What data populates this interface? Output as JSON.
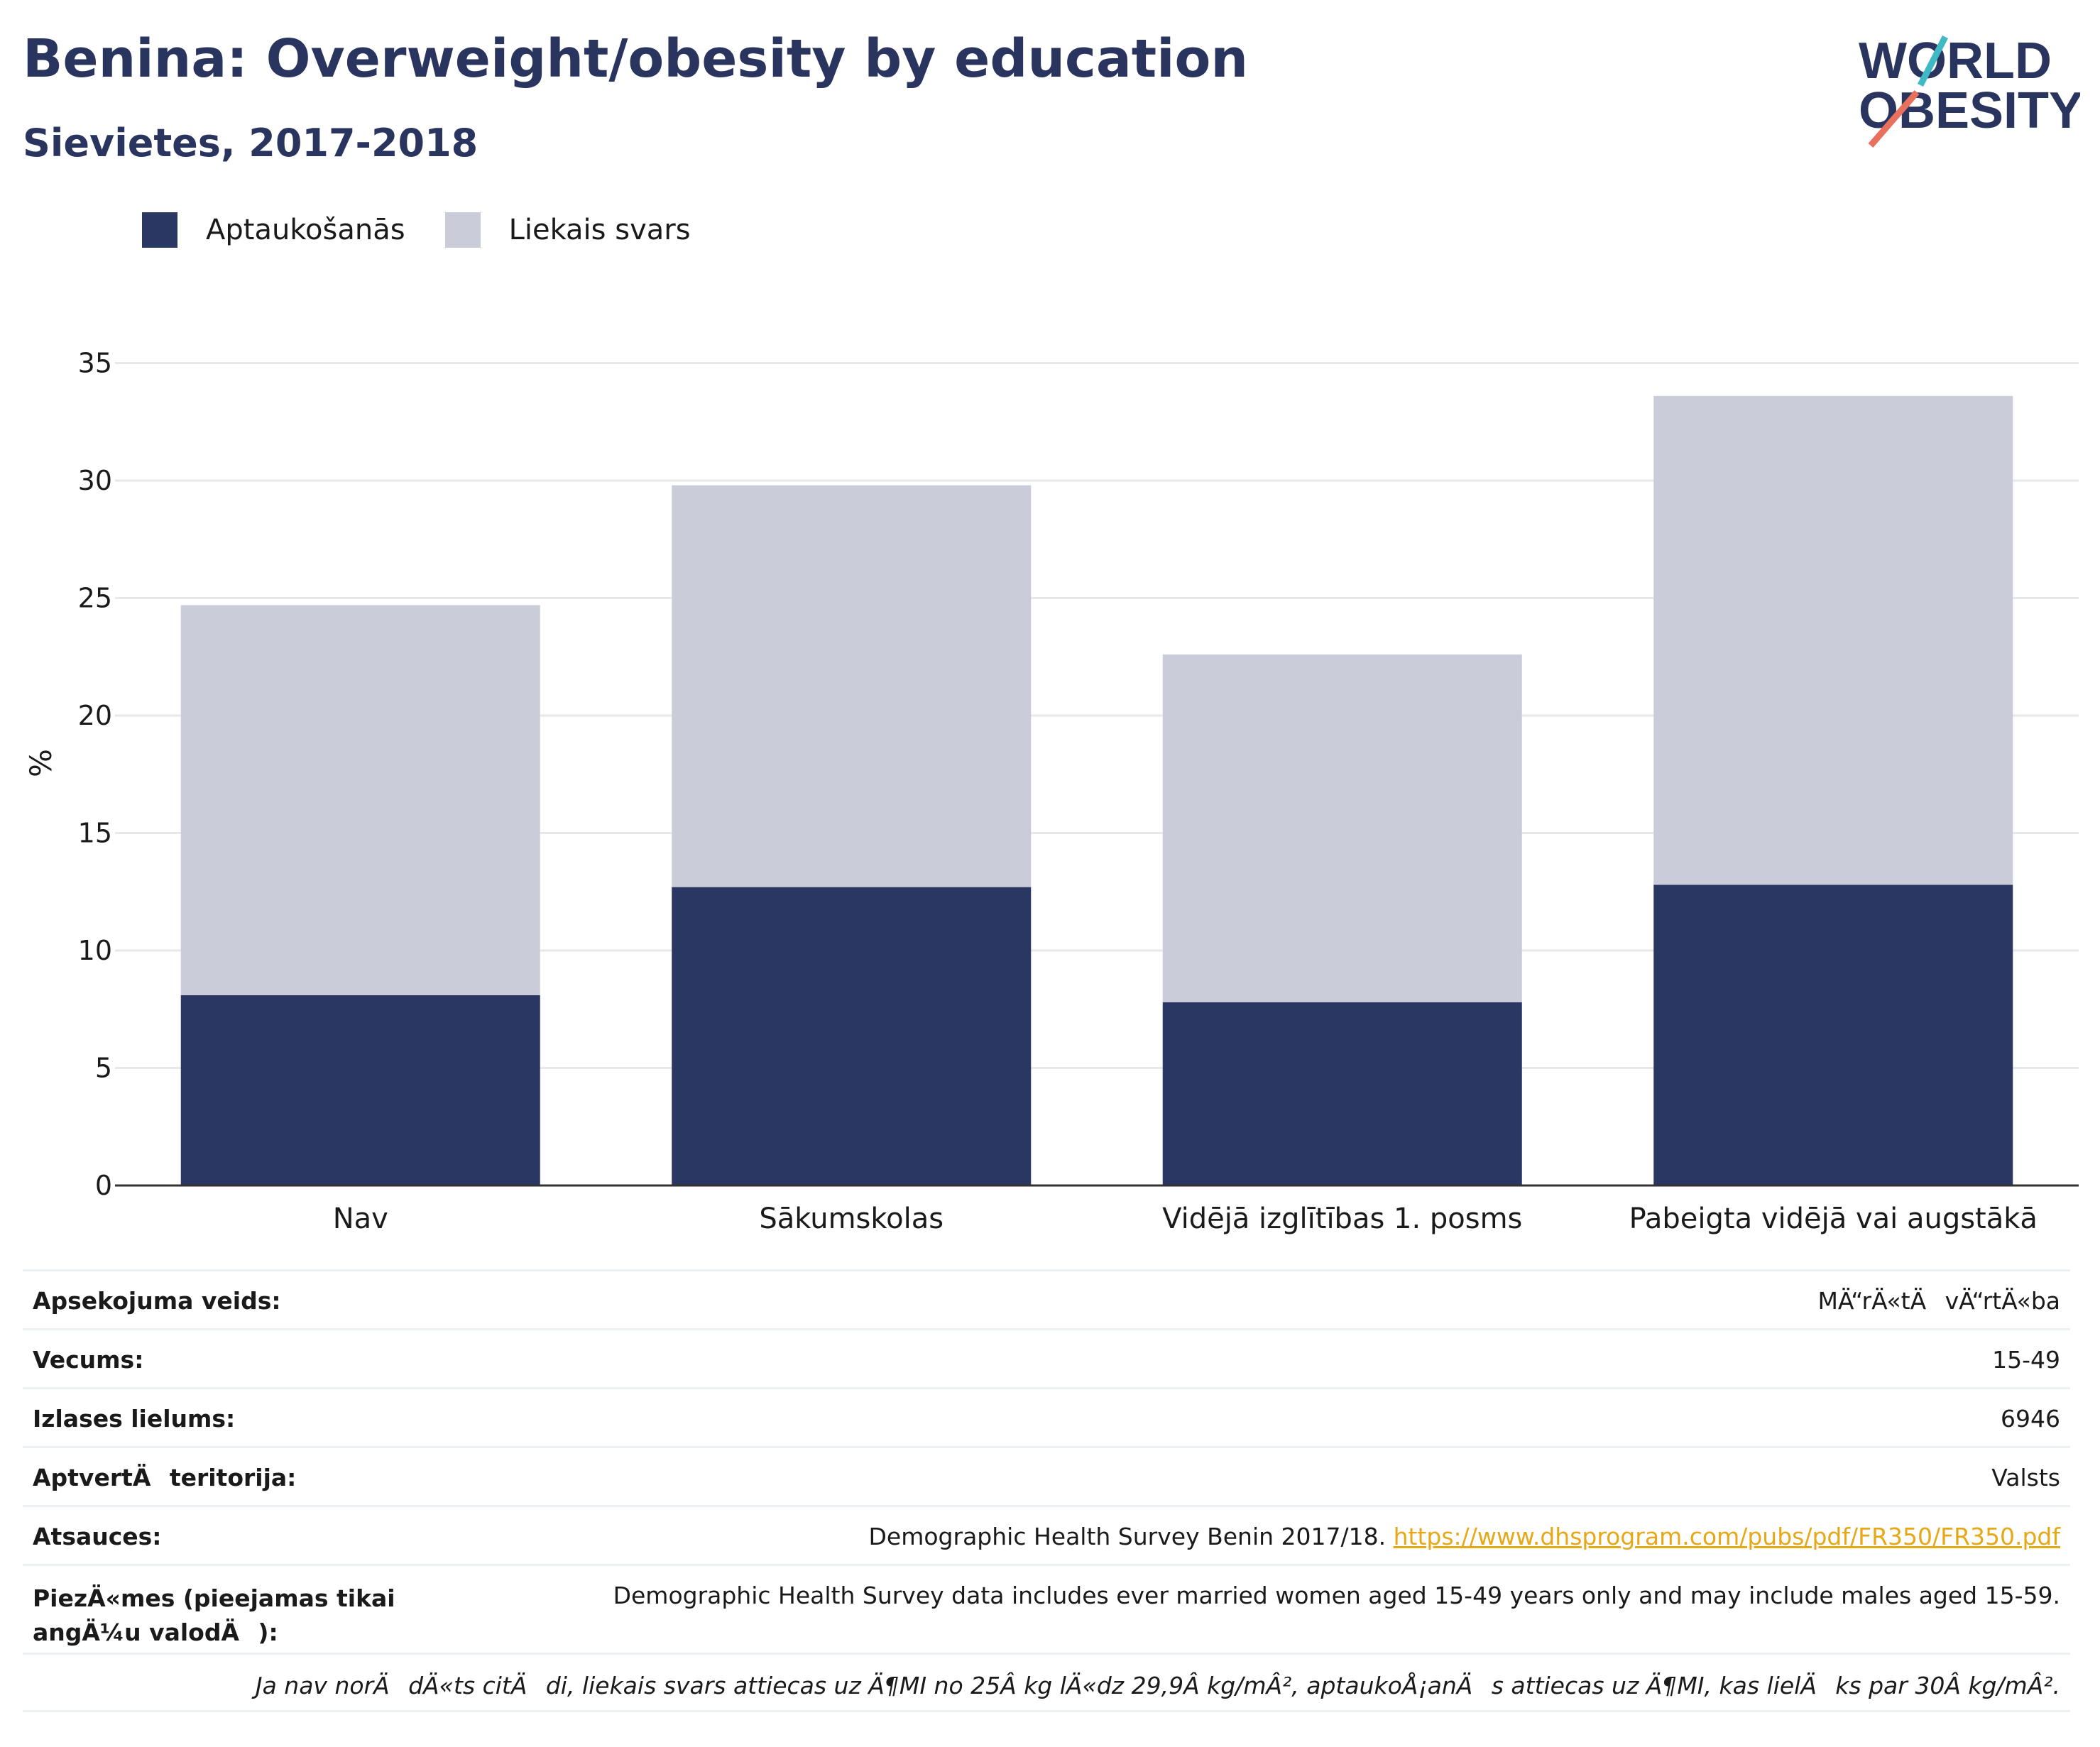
{
  "title": "Benina: Overweight/obesity by education",
  "subtitle": "Sievietes, 2017-2018",
  "logo": {
    "line1": "WORLD",
    "line2": "OBESITY"
  },
  "colors": {
    "obesity": "#2a3763",
    "overweight": "#cacdd9",
    "title": "#2a355f",
    "link": "#e6a817",
    "grid": "#e6e8ea",
    "teal": "#3fb9c3",
    "coral": "#e8705d"
  },
  "legend": [
    {
      "label": "Aptaukošanās",
      "color": "#2a3763"
    },
    {
      "label": "Liekais svars",
      "color": "#cacdd9"
    }
  ],
  "chart_data": {
    "type": "bar",
    "stacked": true,
    "categories": [
      "Nav",
      "Sākumskolas",
      "Vidējā izglītības 1. posms",
      "Pabeigta vidējā vai augstākā"
    ],
    "series": [
      {
        "name": "Aptaukošanās",
        "values": [
          8.1,
          12.7,
          7.8,
          12.8
        ]
      },
      {
        "name": "Liekais svars",
        "values": [
          16.6,
          17.1,
          14.8,
          20.8
        ]
      }
    ],
    "ylabel": "%",
    "ylim": [
      0,
      36
    ],
    "yticks": [
      "0",
      "5",
      "10",
      "15",
      "20",
      "25",
      "30",
      "35"
    ],
    "grid": true,
    "legend_position": "top-left"
  },
  "info": {
    "survey_type_label": "Apsekojuma veids:",
    "survey_type_value": "MÄ“rÄ«tÄvÄ“rtÄ«ba",
    "age_label": "Vecums:",
    "age_value": "15-49",
    "sample_label": "Izlases lielums:",
    "sample_value": "6946",
    "coverage_label": "AptvertÄteritorija:",
    "coverage_value": "Valsts",
    "references_label": "Atsauces:",
    "references_text": "Demographic Health Survey Benin 2017/18.",
    "references_link": "https://www.dhsprogram.com/pubs/pdf/FR350/FR350.pdf",
    "notes_label": "PiezÄ«mes (pieejamas tikai angÄ¼u valodÄ):",
    "notes_value": "Demographic Health Survey data includes ever married women aged 15-49 years only and may include males aged 15-59.",
    "footnote": "Ja nav norÄdÄ«ts citÄdi, liekais svars attiecas uz Ä¶MI no 25Â kg lÄ«dz 29,9Â kg/mÂ², aptaukoÅ¡anÄs attiecas uz Ä¶MI, kas lielÄks par 30Â kg/mÂ²."
  }
}
